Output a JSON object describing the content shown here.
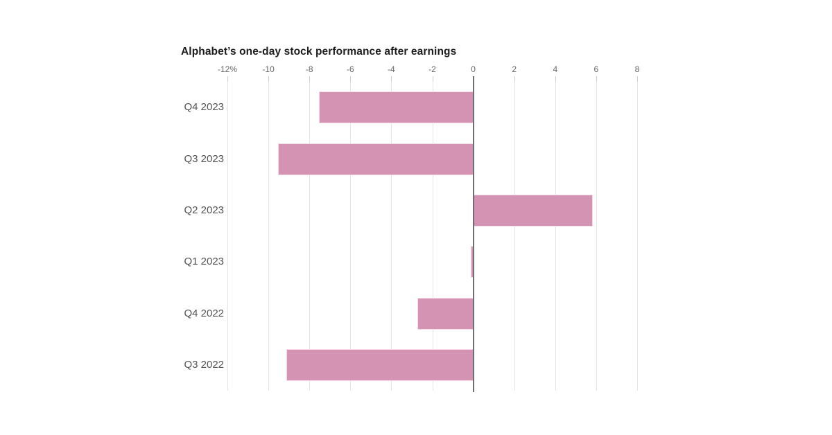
{
  "page": {
    "background_color": "#ffffff"
  },
  "chart_data": {
    "type": "bar",
    "orientation": "horizontal",
    "title": "Alphabet’s one-day stock performance after earnings",
    "categories": [
      "Q4 2023",
      "Q3 2023",
      "Q2 2023",
      "Q1 2023",
      "Q4 2022",
      "Q3 2022"
    ],
    "values": [
      -7.5,
      -9.5,
      5.8,
      -0.1,
      -2.7,
      -9.1
    ],
    "unit": "%",
    "xlabel": "",
    "ylabel": "",
    "xlim": [
      -12,
      8
    ],
    "x_ticks": [
      -12,
      -10,
      -8,
      -6,
      -4,
      -2,
      0,
      2,
      4,
      6,
      8
    ],
    "x_tick_labels": [
      "-12%",
      "-10",
      "-8",
      "-6",
      "-4",
      "-2",
      "0",
      "2",
      "4",
      "6",
      "8"
    ],
    "grid": true,
    "axis_position": "top",
    "legend": "none",
    "colors": {
      "bar": "#d493b3",
      "bar_edge": "#f3dbe8",
      "gridline": "#e5e5e5",
      "zero_line": "#6e6e6e",
      "tick_mark": "#cccccc",
      "tick_label": "#666666",
      "category_label": "#525252",
      "title": "#1d1d1d",
      "background": "#ffffff"
    }
  }
}
